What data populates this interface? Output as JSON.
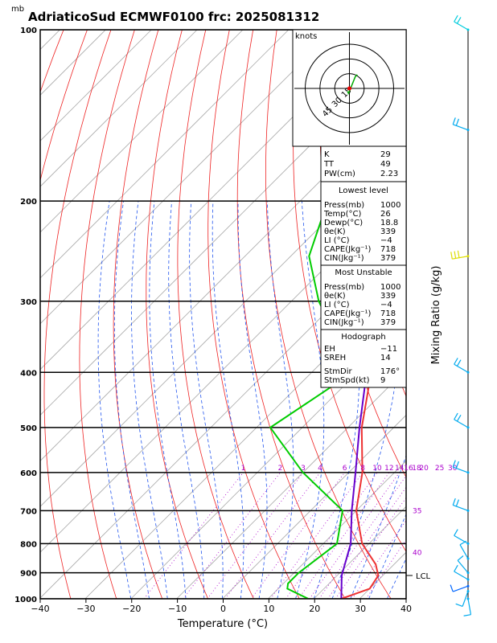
{
  "title": "AdriaticoSud ECMWF0100 frc: 2025081312",
  "units_top": "mb",
  "chart_data": {
    "type": "skew-t",
    "xlabel": "Temperature (°C)",
    "ylabel_right": "Mixing Ratio (g/kg)",
    "xlim": [
      -40,
      40
    ],
    "x_ticks": [
      -40,
      -30,
      -20,
      -10,
      0,
      10,
      20,
      30,
      40
    ],
    "pressure_ticks": [
      100,
      200,
      300,
      400,
      500,
      600,
      700,
      800,
      900,
      1000
    ],
    "ylim_mb": [
      1000,
      100
    ],
    "lcl_label": "LCL",
    "lcl_pressure": 910,
    "mixing_ratio_labels": [
      "1",
      "2",
      "3",
      "4",
      "6",
      "8",
      "10",
      "12",
      "14",
      "16",
      "18",
      "20",
      "25",
      "30"
    ],
    "mixing_ratio_values": [
      1,
      2,
      3,
      4,
      6,
      8,
      10,
      12,
      14,
      16,
      18,
      20,
      25,
      30
    ],
    "theta_e_labels": [
      {
        "text": "35",
        "pressure": 700
      },
      {
        "text": "40",
        "pressure": 830
      }
    ],
    "series": [
      {
        "color": "#ee3333",
        "points": [
          [
            1000,
            26
          ],
          [
            960,
            30
          ],
          [
            910,
            29
          ],
          [
            870,
            26
          ],
          [
            800,
            18.5
          ],
          [
            700,
            10
          ],
          [
            600,
            3
          ],
          [
            500,
            -7
          ],
          [
            400,
            -17
          ],
          [
            300,
            -33
          ],
          [
            250,
            -43
          ],
          [
            200,
            -51
          ],
          [
            150,
            -59
          ],
          [
            100,
            -65
          ]
        ]
      },
      {
        "color": "#00cc00",
        "points": [
          [
            1000,
            18.8
          ],
          [
            960,
            12
          ],
          [
            940,
            11
          ],
          [
            900,
            11
          ],
          [
            800,
            13
          ],
          [
            700,
            7
          ],
          [
            600,
            -10
          ],
          [
            500,
            -27
          ],
          [
            400,
            -21
          ],
          [
            300,
            -44
          ],
          [
            250,
            -56
          ],
          [
            200,
            -64
          ],
          [
            150,
            -70
          ],
          [
            100,
            -76
          ]
        ]
      },
      {
        "color": "#6600cc",
        "points": [
          [
            1000,
            26
          ],
          [
            910,
            21
          ],
          [
            800,
            16
          ],
          [
            700,
            9
          ],
          [
            600,
            1.5
          ],
          [
            500,
            -7.5
          ],
          [
            400,
            -18
          ],
          [
            300,
            -34
          ],
          [
            200,
            -58
          ],
          [
            150,
            -72
          ],
          [
            100,
            -89
          ]
        ]
      }
    ],
    "dry_adiabats_thetaK": [
      220,
      230,
      240,
      250,
      260,
      270,
      280,
      290,
      300,
      310,
      320,
      330,
      340,
      350,
      360,
      370,
      380,
      390,
      400,
      410,
      420,
      430,
      440,
      450,
      460
    ],
    "moist_adiabats_C": [
      -20,
      -16,
      -12,
      -8,
      -4,
      0,
      4,
      8,
      12,
      16,
      20,
      24,
      28,
      32,
      36
    ],
    "wind_barbs": [
      {
        "pressure": 1000,
        "dir_deg": 170,
        "speed_kt": 5
      },
      {
        "pressure": 970,
        "dir_deg": 200,
        "speed_kt": 8
      },
      {
        "pressure": 950,
        "dir_deg": 250,
        "speed_kt": 10
      },
      {
        "pressure": 925,
        "dir_deg": 300,
        "speed_kt": 12
      },
      {
        "pressure": 900,
        "dir_deg": 320,
        "speed_kt": 10
      },
      {
        "pressure": 850,
        "dir_deg": 330,
        "speed_kt": 8
      },
      {
        "pressure": 800,
        "dir_deg": 300,
        "speed_kt": 10
      },
      {
        "pressure": 700,
        "dir_deg": 290,
        "speed_kt": 15
      },
      {
        "pressure": 600,
        "dir_deg": 290,
        "speed_kt": 20
      },
      {
        "pressure": 500,
        "dir_deg": 300,
        "speed_kt": 20
      },
      {
        "pressure": 400,
        "dir_deg": 300,
        "speed_kt": 20
      },
      {
        "pressure": 250,
        "dir_deg": 260,
        "speed_kt": 25
      },
      {
        "pressure": 150,
        "dir_deg": 290,
        "speed_kt": 20
      },
      {
        "pressure": 100,
        "dir_deg": 300,
        "speed_kt": 15
      }
    ],
    "hodograph": {
      "label": "knots",
      "ring_labels": [
        "15",
        "30",
        "45"
      ],
      "ring_values": [
        15,
        30,
        45
      ],
      "trace": [
        [
          -2,
          3
        ],
        [
          -1,
          5
        ],
        [
          2,
          -2
        ],
        [
          6,
          -12
        ],
        [
          8,
          -14
        ]
      ]
    }
  },
  "indices": {
    "k_label": "K",
    "k_value": "29",
    "tt_label": "TT",
    "tt_value": "49",
    "pw_label": "PW(cm)",
    "pw_value": "2.23"
  },
  "lowest_level": {
    "header": "Lowest level",
    "rows": [
      {
        "label": "Press(mb)",
        "value": "1000"
      },
      {
        "label": "Temp(°C)",
        "value": "26"
      },
      {
        "label": "Dewp(°C)",
        "value": "18.8"
      },
      {
        "label": "θe(K)",
        "value": "339"
      },
      {
        "label": "LI (°C)",
        "value": "−4"
      },
      {
        "label": "CAPE(Jkg⁻¹)",
        "value": "718"
      },
      {
        "label": "CIN(Jkg⁻¹)",
        "value": "379"
      }
    ]
  },
  "most_unstable": {
    "header": "Most Unstable",
    "rows": [
      {
        "label": "Press(mb)",
        "value": "1000"
      },
      {
        "label": "θe(K)",
        "value": "339"
      },
      {
        "label": "LI (°C)",
        "value": "−4"
      },
      {
        "label": "CAPE(Jkg⁻¹)",
        "value": "718"
      },
      {
        "label": "CIN(Jkg⁻¹)",
        "value": "379"
      }
    ]
  },
  "hodograph_table": {
    "header": "Hodograph",
    "rows": [
      {
        "label": "EH",
        "value": "−11"
      },
      {
        "label": "SREH",
        "value": "14"
      },
      {
        "label": "StmDir",
        "value": "176°"
      },
      {
        "label": "StmSpd(kt)",
        "value": "9"
      }
    ]
  }
}
